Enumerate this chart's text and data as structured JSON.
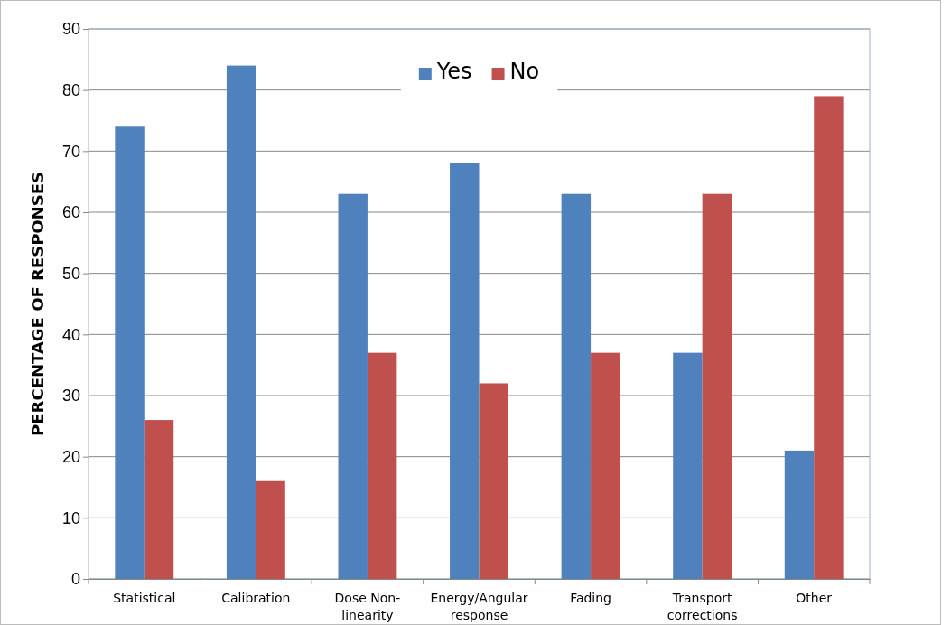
{
  "chart_data": {
    "type": "bar",
    "ylabel": "PERCENTAGE OF RESPONSES",
    "categories": [
      "Statistical",
      "Calibration",
      "Dose Non-linearity",
      "Energy/Angular response",
      "Fading",
      "Transport corrections",
      "Other"
    ],
    "series": [
      {
        "name": "Yes",
        "color": "#4f81bd",
        "values": [
          74,
          84,
          63,
          68,
          63,
          37,
          21
        ]
      },
      {
        "name": "No",
        "color": "#c0504d",
        "values": [
          26,
          16,
          37,
          32,
          37,
          63,
          79
        ]
      }
    ],
    "ylim": [
      0,
      90
    ],
    "yticks": [
      0,
      10,
      20,
      30,
      40,
      50,
      60,
      70,
      80,
      90
    ],
    "grid": "y",
    "legend": "top"
  }
}
